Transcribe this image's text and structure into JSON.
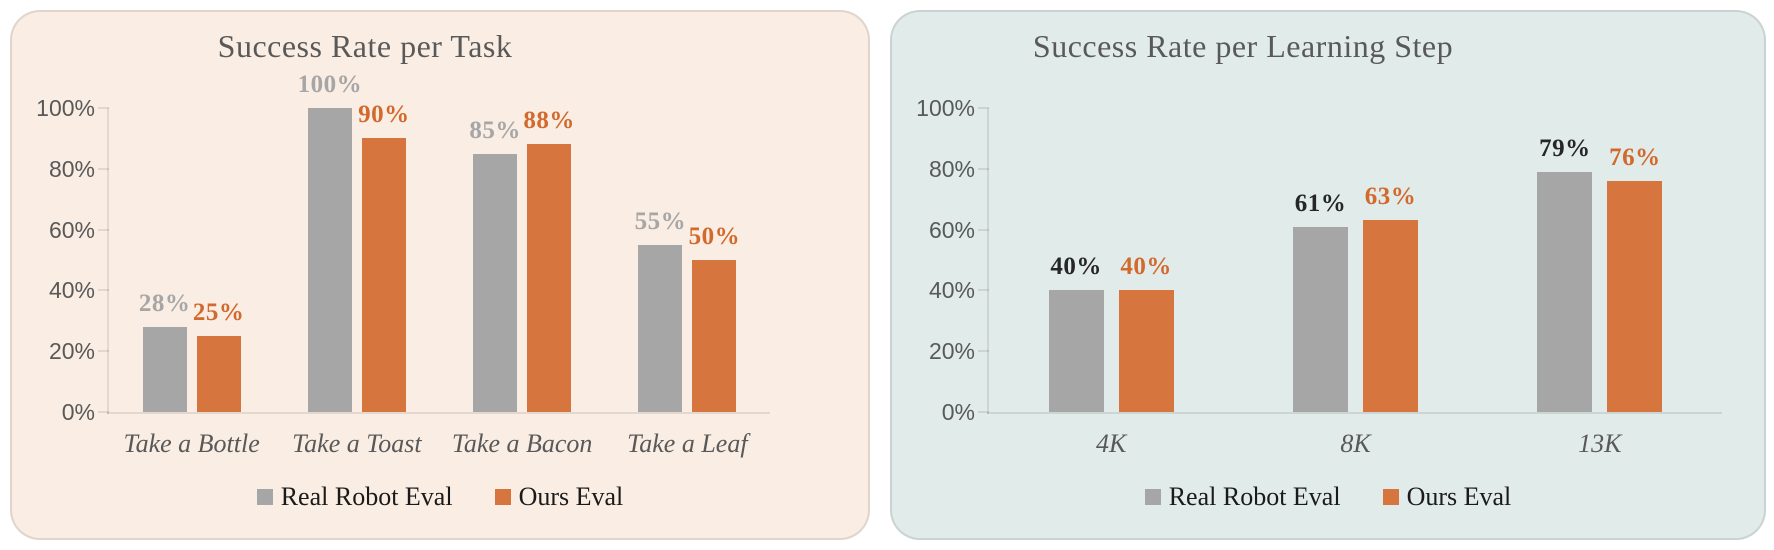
{
  "figure": {
    "background": "#ffffff"
  },
  "chart_data": [
    {
      "type": "bar",
      "title": "Success Rate per Task",
      "panel_background": "#faede3",
      "panel_border": "#d8d0c9",
      "categories": [
        "Take a Bottle",
        "Take a Toast",
        "Take a Bacon",
        "Take a Leaf"
      ],
      "series": [
        {
          "name": "Real Robot Eval",
          "color": "#a6a6a6",
          "data_label_color": "#a6a6a6",
          "values": [
            28,
            100,
            85,
            55
          ]
        },
        {
          "name": "Ours Eval",
          "color": "#d6753e",
          "data_label_color": "#d2692d",
          "values": [
            25,
            90,
            88,
            50
          ]
        }
      ],
      "data_labels": [
        [
          "28%",
          "100%",
          "85%",
          "55%"
        ],
        [
          "25%",
          "90%",
          "88%",
          "50%"
        ]
      ],
      "y_axis": {
        "ticks": [
          "0%",
          "20%",
          "40%",
          "60%",
          "80%",
          "100%"
        ],
        "min": 0,
        "max": 100,
        "tick_color": "#595959"
      },
      "xlabel": "",
      "ylabel": "",
      "ylim": [
        0,
        100
      ],
      "grid": false,
      "legend": {
        "position": "bottom",
        "entries": [
          "Real Robot Eval",
          "Ours Eval"
        ]
      }
    },
    {
      "type": "bar",
      "title": "Success Rate per Learning Step",
      "panel_background": "#e1ebe9",
      "panel_border": "#c6d1cf",
      "categories": [
        "4K",
        "8K",
        "13K"
      ],
      "series": [
        {
          "name": "Real Robot Eval",
          "color": "#a6a6a6",
          "data_label_color": "#262626",
          "values": [
            40,
            61,
            79
          ]
        },
        {
          "name": "Ours Eval",
          "color": "#d6753e",
          "data_label_color": "#d2692d",
          "values": [
            40,
            63,
            76
          ]
        }
      ],
      "data_labels": [
        [
          "40%",
          "61%",
          "79%"
        ],
        [
          "40%",
          "63%",
          "76%"
        ]
      ],
      "y_axis": {
        "ticks": [
          "0%",
          "20%",
          "40%",
          "60%",
          "80%",
          "100%"
        ],
        "min": 0,
        "max": 100,
        "tick_color": "#595959"
      },
      "xlabel": "",
      "ylabel": "",
      "ylim": [
        0,
        100
      ],
      "grid": false,
      "legend": {
        "position": "bottom",
        "entries": [
          "Real Robot Eval",
          "Ours Eval"
        ]
      }
    }
  ]
}
